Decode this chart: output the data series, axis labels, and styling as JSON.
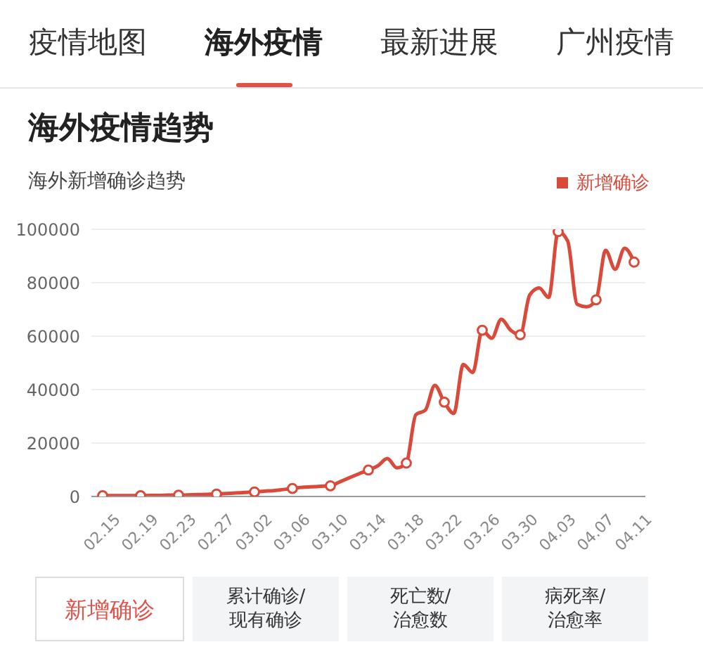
{
  "chart_data": {
    "type": "line",
    "title": "海外疫情趋势",
    "subtitle": "海外新增确诊趋势",
    "annotations": [
      "疫情地图",
      "海外疫情",
      "最新进展",
      "广州疫情",
      "新增确诊",
      "累计确诊/\n现有确诊",
      "死亡数/\n治愈数",
      "病死率/\n治愈率"
    ],
    "categories": [
      "02.15",
      null,
      null,
      null,
      "02.19",
      null,
      null,
      null,
      "02.23",
      null,
      null,
      null,
      "02.27",
      null,
      null,
      null,
      "03.02",
      null,
      null,
      null,
      "03.06",
      null,
      null,
      null,
      "03.10",
      null,
      null,
      null,
      "03.14",
      null,
      null,
      null,
      "03.18",
      null,
      null,
      null,
      "03.22",
      null,
      null,
      null,
      "03.26",
      null,
      null,
      null,
      "03.30",
      null,
      null,
      null,
      "04.03",
      null,
      null,
      null,
      "04.07",
      null,
      null,
      null,
      "04.11"
    ],
    "series": [
      {
        "name": "新增确诊",
        "color": "#d94a3a",
        "values": [
          300,
          300,
          300,
          300,
          300,
          400,
          400,
          500,
          500,
          600,
          700,
          800,
          900,
          1100,
          1300,
          1500,
          1700,
          2000,
          2200,
          2600,
          3000,
          3400,
          3600,
          3800,
          4000,
          5500,
          7000,
          8500,
          9900,
          11500,
          14200,
          10700,
          12500,
          30600,
          32300,
          41600,
          35300,
          31100,
          49400,
          46400,
          62200,
          59200,
          66300,
          62200,
          60500,
          75400,
          78000,
          74500,
          99100,
          95600,
          71900,
          71000,
          73600,
          92100,
          85000,
          92900,
          87700
        ]
      },
      {
        "type": "scatter",
        "color": "#d94a3a",
        "marker": "circle",
        "values": [
          300,
          null,
          null,
          null,
          300,
          null,
          null,
          null,
          500,
          null,
          null,
          null,
          900,
          null,
          null,
          null,
          1700,
          null,
          null,
          null,
          3000,
          null,
          null,
          null,
          4000,
          null,
          null,
          null,
          9900,
          null,
          null,
          null,
          12500,
          null,
          null,
          null,
          35300,
          null,
          null,
          null,
          62200,
          null,
          null,
          null,
          60500,
          null,
          null,
          null,
          99100,
          null,
          null,
          null,
          73600,
          null,
          null,
          null,
          87700
        ]
      }
    ],
    "ylim": [
      0,
      100000
    ],
    "yticks": [
      0,
      20000,
      40000,
      60000,
      80000,
      100000
    ],
    "grid": "y",
    "legend": "top right",
    "line_style": "solid"
  }
}
